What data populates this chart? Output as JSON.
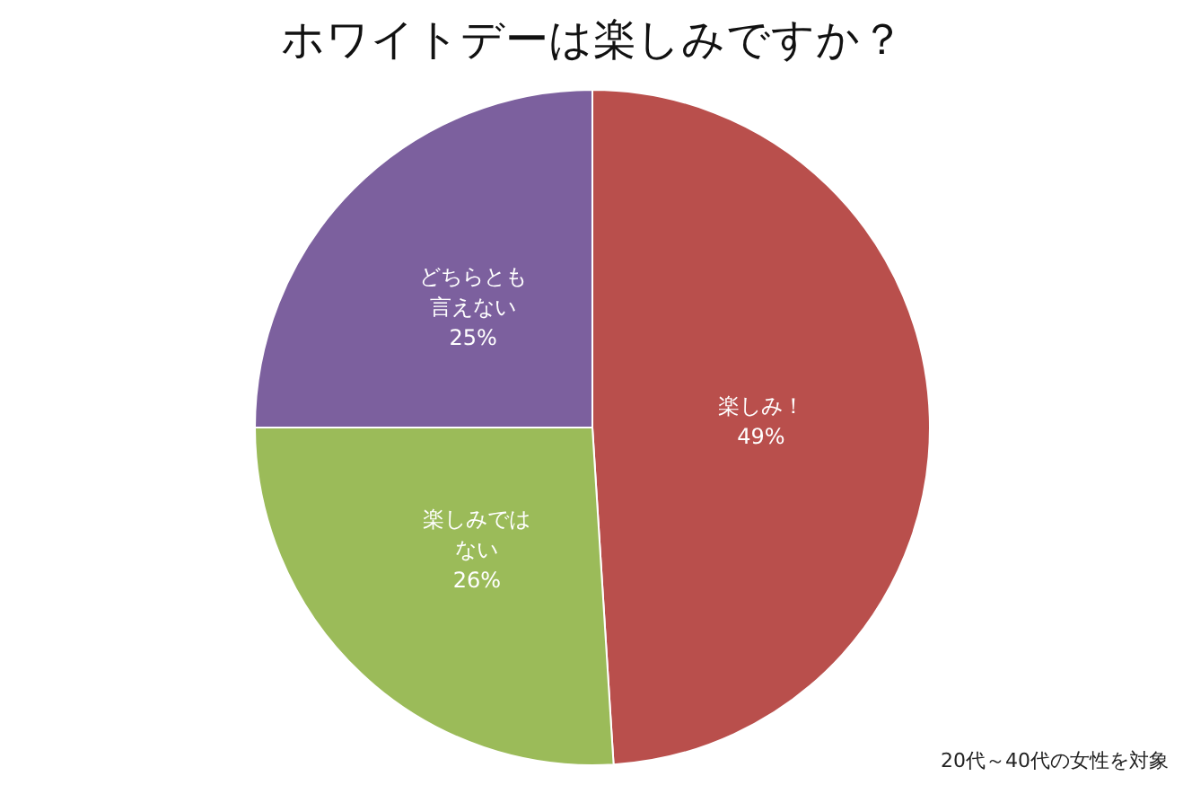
{
  "chart_data": {
    "type": "pie",
    "title": "ホワイトデーは楽しみですか？",
    "categories": [
      "楽しみ！",
      "楽しみではない",
      "どちらとも言えない"
    ],
    "values": [
      49,
      26,
      25
    ],
    "value_labels": [
      "49%",
      "26%",
      "25%"
    ],
    "colors": [
      "#b94f4c",
      "#9bbb59",
      "#7c609e"
    ],
    "annotations": [
      "20代～40代の女性を対象"
    ]
  }
}
